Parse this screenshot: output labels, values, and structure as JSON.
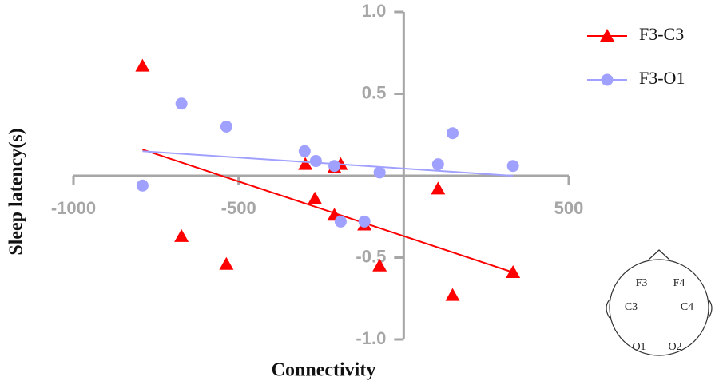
{
  "chart_data": {
    "type": "scatter",
    "x_label": "Connectivity",
    "y_label": "Sleep latency(s)",
    "xlim": [
      -1000,
      500
    ],
    "xticks": [
      -1000,
      -500,
      500
    ],
    "ylim": [
      -1.0,
      1.0
    ],
    "yticks": [
      {
        "value": -1.0,
        "label": "-1.0"
      },
      {
        "value": -0.5,
        "label": "-0.5"
      },
      {
        "value": 0.5,
        "label": "0.5"
      },
      {
        "value": 1.0,
        "label": "1.0"
      }
    ],
    "series": [
      {
        "name": "F3-C3",
        "color": "#ff0000",
        "marker": "triangle",
        "x": [
          -791,
          -673,
          -537,
          -298,
          -269,
          -210,
          -210,
          -191,
          -119,
          -73,
          104,
          148,
          331
        ],
        "values": [
          0.67,
          -0.37,
          -0.54,
          0.07,
          -0.14,
          -0.24,
          0.05,
          0.07,
          -0.3,
          -0.55,
          -0.08,
          -0.73,
          -0.59
        ],
        "fit": {
          "x": [
            -791,
            331
          ],
          "values": [
            0.16,
            -0.59
          ]
        }
      },
      {
        "name": "F3-O1",
        "color": "#a0a0ff",
        "marker": "circle",
        "x": [
          -791,
          -673,
          -537,
          -300,
          -266,
          -210,
          -191,
          -119,
          -73,
          104,
          148,
          331
        ],
        "values": [
          -0.06,
          0.44,
          0.3,
          0.15,
          0.09,
          0.06,
          -0.28,
          -0.28,
          0.02,
          0.07,
          0.26,
          0.06
        ],
        "fit": {
          "x": [
            -791,
            331
          ],
          "values": [
            0.15,
            0.0
          ]
        }
      }
    ],
    "head_diagram": {
      "labels": [
        "F3",
        "F4",
        "C3",
        "C4",
        "O1",
        "O2"
      ]
    }
  }
}
